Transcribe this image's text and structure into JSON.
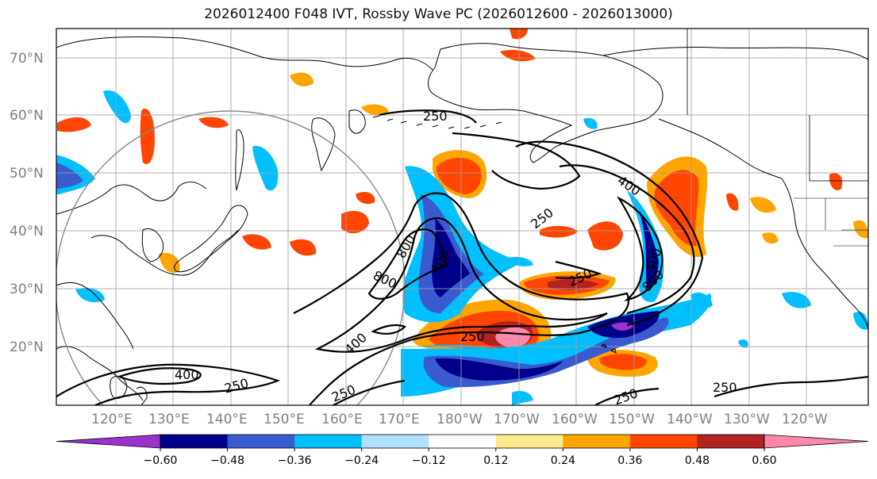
{
  "title": "2026012400 F048 IVT, Rossby Wave PC (2026012600 - 2026013000)",
  "latitude_labels": [
    "70°N",
    "60°N",
    "50°N",
    "40°N",
    "30°N",
    "20°N"
  ],
  "longitude_labels": [
    "120°E",
    "130°E",
    "140°E",
    "150°E",
    "160°E",
    "170°E",
    "180°W",
    "170°W",
    "160°W",
    "150°W",
    "140°W",
    "130°W",
    "120°W"
  ],
  "contour_labels": [
    "250",
    "400",
    "250",
    "400",
    "800",
    "400",
    "250",
    "800",
    "400",
    "250",
    "800",
    "250",
    "400",
    "250",
    "250",
    "250",
    "250"
  ],
  "colorbar": {
    "tick_labels": [
      "−0.60",
      "−0.48",
      "−0.36",
      "−0.24",
      "−0.12",
      "0.12",
      "0.24",
      "0.36",
      "0.48",
      "0.60"
    ],
    "colors": [
      "#9932cc",
      "#00008b",
      "#3a5bd0",
      "#00bfff",
      "#b0e0fc",
      "#ffffff",
      "#ffe98a",
      "#ffa500",
      "#ff4500",
      "#b22222",
      "#ff88aa"
    ]
  }
}
